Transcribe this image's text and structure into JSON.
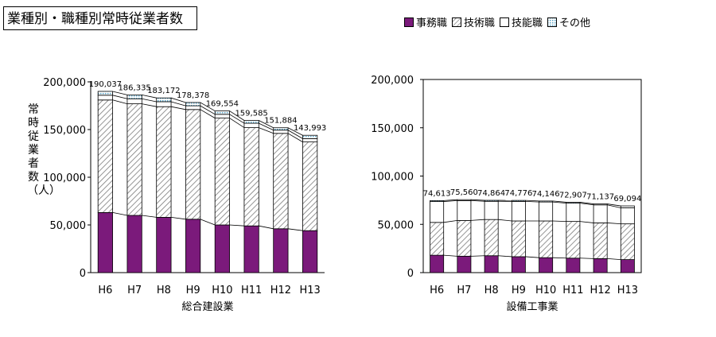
{
  "page_title": "業種別・職種別常時従業者数",
  "legend": [
    {
      "name": "事務職",
      "pattern": "solid",
      "color": "#7b1a7b"
    },
    {
      "name": "技術職",
      "pattern": "hatch",
      "color": "#8a8a8a"
    },
    {
      "name": "技能職",
      "pattern": "empty",
      "color": "#ffffff"
    },
    {
      "name": "その他",
      "pattern": "dots",
      "color": "#5aa6c8"
    }
  ],
  "chart_data": [
    {
      "type": "bar",
      "stacked": true,
      "xlabel": "総合建設業",
      "ylabel": "常時従業者数（人）",
      "ylim": [
        0,
        200000
      ],
      "yticks": [
        "0",
        "50,000",
        "100,000",
        "150,000",
        "200,000"
      ],
      "categories": [
        "H6",
        "H7",
        "H8",
        "H9",
        "H10",
        "H11",
        "H12",
        "H13"
      ],
      "totals": [
        "190,037",
        "186,335",
        "183,172",
        "178,378",
        "169,554",
        "159,585",
        "151,884",
        "143,993"
      ],
      "series": [
        {
          "name": "事務職",
          "values": [
            63000,
            60000,
            58000,
            56000,
            50000,
            49000,
            46000,
            44000
          ]
        },
        {
          "name": "技術職",
          "values": [
            118000,
            117000,
            116000,
            115000,
            112000,
            103000,
            100000,
            93000
          ]
        },
        {
          "name": "技能職",
          "values": [
            5000,
            5300,
            5200,
            3900,
            4000,
            4600,
            3400,
            3500
          ]
        },
        {
          "name": "その他",
          "values": [
            4037,
            4035,
            3972,
            3478,
            3554,
            2985,
            2484,
            3493
          ]
        }
      ],
      "grid": false
    },
    {
      "type": "bar",
      "stacked": true,
      "xlabel": "設備工事業",
      "ylabel": "",
      "ylim": [
        0,
        200000
      ],
      "yticks": [
        "0",
        "50,000",
        "100,000",
        "150,000",
        "200,000"
      ],
      "categories": [
        "H6",
        "H7",
        "H8",
        "H9",
        "H10",
        "H11",
        "H12",
        "H13"
      ],
      "totals": [
        "74,613",
        "75,560",
        "74,864",
        "74,776",
        "74,146",
        "72,907",
        "71,137",
        "69,094"
      ],
      "series": [
        {
          "name": "事務職",
          "values": [
            18000,
            17000,
            17500,
            16500,
            15500,
            15000,
            14500,
            13500
          ]
        },
        {
          "name": "技術職",
          "values": [
            34000,
            37000,
            37500,
            37000,
            38000,
            38000,
            37000,
            37000
          ]
        },
        {
          "name": "技能職",
          "values": [
            21613,
            20560,
            18864,
            20276,
            19646,
            18907,
            18637,
            16594
          ]
        },
        {
          "name": "その他",
          "values": [
            1000,
            1000,
            1000,
            1000,
            1000,
            1000,
            1000,
            2000
          ]
        }
      ],
      "grid": false
    }
  ]
}
